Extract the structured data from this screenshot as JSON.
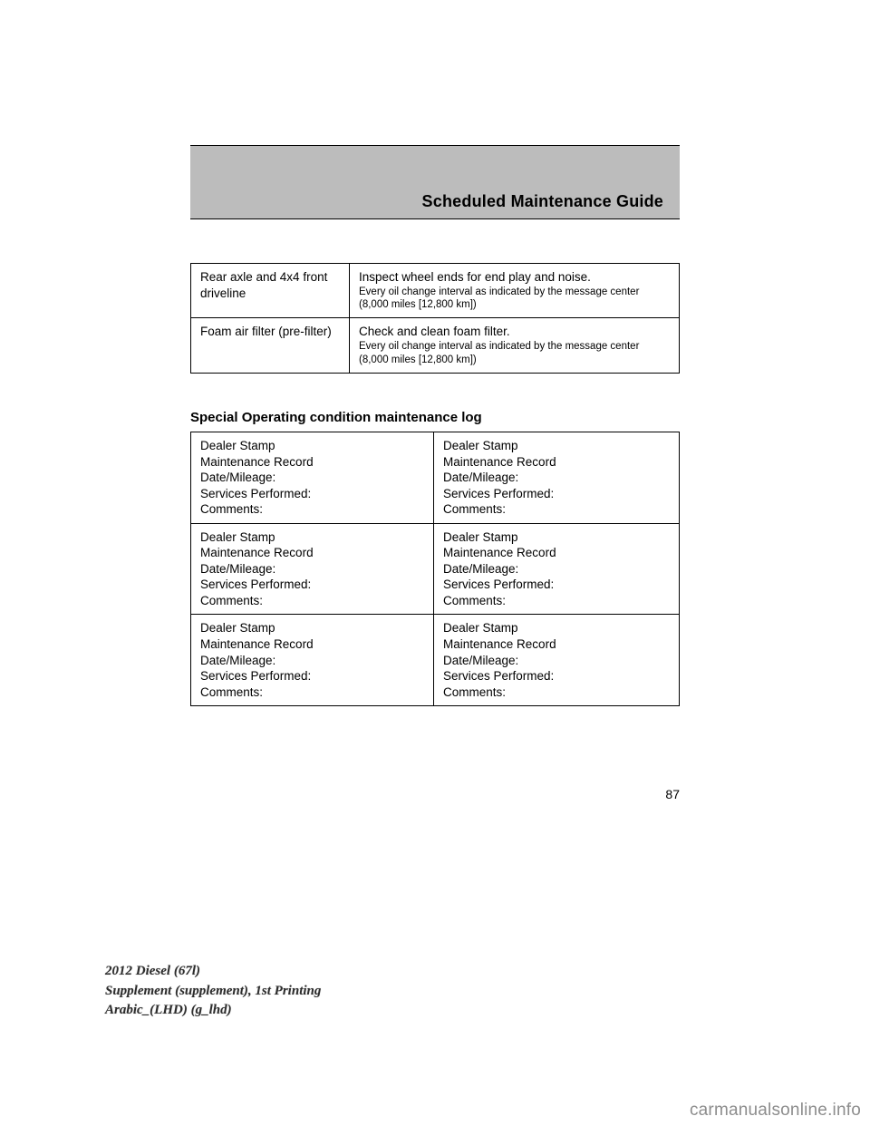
{
  "header": {
    "title": "Scheduled Maintenance Guide"
  },
  "table1": {
    "rows": [
      {
        "left": "Rear axle and 4x4 front driveline",
        "right_line1": "Inspect wheel ends for end play and noise.",
        "right_note": "Every oil change interval as indicated by the message center (8,000 miles [12,800 km])"
      },
      {
        "left": "Foam air filter (pre-filter)",
        "right_line1": "Check and clean foam filter.",
        "right_note": "Every oil change interval as indicated by the message center (8,000 miles [12,800 km])"
      }
    ]
  },
  "section": {
    "title": "Special Operating condition maintenance log"
  },
  "table2": {
    "rows": [
      {
        "left": {
          "l1": "Dealer Stamp",
          "l2": "Maintenance Record",
          "l3": "Date/Mileage:",
          "l4": "Services Performed:",
          "l5": "Comments:"
        },
        "right": {
          "l1": "Dealer Stamp",
          "l2": "Maintenance Record",
          "l3": "Date/Mileage:",
          "l4": "Services Performed:",
          "l5": "Comments:"
        }
      },
      {
        "left": {
          "l1": "Dealer Stamp",
          "l2": "Maintenance Record",
          "l3": "Date/Mileage:",
          "l4": "Services Performed:",
          "l5": "Comments:"
        },
        "right": {
          "l1": "Dealer Stamp",
          "l2": "Maintenance Record",
          "l3": "Date/Mileage:",
          "l4": "Services Performed:",
          "l5": "Comments:"
        }
      },
      {
        "left": {
          "l1": "Dealer Stamp",
          "l2": "Maintenance Record",
          "l3": "Date/Mileage:",
          "l4": "Services Performed:",
          "l5": "Comments:"
        },
        "right": {
          "l1": "Dealer Stamp",
          "l2": "Maintenance Record",
          "l3": "Date/Mileage:",
          "l4": "Services Performed:",
          "l5": "Comments:"
        }
      }
    ]
  },
  "page_number": "87",
  "footer": {
    "l1": "2012 Diesel (67l)",
    "l2": "Supplement (supplement), 1st Printing",
    "l3": "Arabic_(LHD) (g_lhd)"
  },
  "watermark": "carmanualsonline.info"
}
